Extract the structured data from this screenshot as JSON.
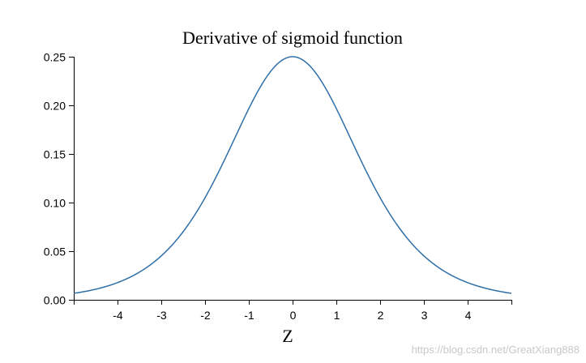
{
  "chart_data": {
    "type": "line",
    "title": "Derivative of sigmoid function",
    "xlabel": "Z",
    "ylabel": "",
    "function": "sigmoid_derivative",
    "xlim": [
      -5,
      5
    ],
    "ylim": [
      0,
      0.25
    ],
    "x_ticks": [
      -4,
      -3,
      -2,
      -1,
      0,
      1,
      2,
      3,
      4
    ],
    "y_ticks": [
      0.0,
      0.05,
      0.1,
      0.15,
      0.2,
      0.25
    ],
    "y_tick_labels": [
      "0.00",
      "0.05",
      "0.10",
      "0.15",
      "0.20",
      "0.25"
    ],
    "x_tick_labels": [
      "-4",
      "-3",
      "-2",
      "-1",
      "0",
      "1",
      "2",
      "3",
      "4"
    ],
    "series": [
      {
        "color": "#2f6fa8",
        "x": [
          -5,
          -4.5,
          -4,
          -3.5,
          -3,
          -2.5,
          -2,
          -1.5,
          -1,
          -0.5,
          0,
          0.5,
          1,
          1.5,
          2,
          2.5,
          3,
          3.5,
          4,
          4.5,
          5
        ],
        "y": [
          0.0066,
          0.0109,
          0.0177,
          0.0285,
          0.0452,
          0.0701,
          0.105,
          0.1491,
          0.1966,
          0.235,
          0.25,
          0.235,
          0.1966,
          0.1491,
          0.105,
          0.0701,
          0.0452,
          0.0285,
          0.0177,
          0.0109,
          0.0066
        ]
      }
    ],
    "grid": false,
    "legend": "none"
  },
  "watermark": "https://blog.csdn.net/GreatXiang888"
}
